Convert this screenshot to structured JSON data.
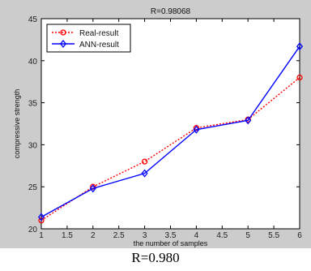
{
  "chart_data": {
    "type": "line",
    "title": "R=0.98068",
    "xlabel": "the number of samples",
    "ylabel": "compressive strength",
    "xlim": [
      1,
      6
    ],
    "ylim": [
      20,
      45
    ],
    "xticks": [
      1,
      1.5,
      2,
      2.5,
      3,
      3.5,
      4,
      4.5,
      5,
      5.5,
      6
    ],
    "xtick_labels": [
      "1",
      "1.5",
      "2",
      "2.5",
      "3",
      "3.5",
      "4",
      "4.5",
      "5",
      "5.5",
      "6"
    ],
    "yticks": [
      20,
      25,
      30,
      35,
      40,
      45
    ],
    "ytick_labels": [
      "20",
      "25",
      "30",
      "35",
      "40",
      "45"
    ],
    "grid": false,
    "legend_position": "top-left",
    "x": [
      1,
      2,
      3,
      4,
      5,
      6
    ],
    "series": [
      {
        "name": "Real-result",
        "values": [
          21.0,
          25.0,
          28.0,
          32.0,
          33.0,
          38.0
        ],
        "color": "#ff0000",
        "line_style": "dotted",
        "marker": "circle"
      },
      {
        "name": "ANN-result",
        "values": [
          21.4,
          24.8,
          26.6,
          31.8,
          32.9,
          41.7
        ],
        "color": "#0000ff",
        "line_style": "solid",
        "marker": "diamond"
      }
    ]
  },
  "caption": "R=0.980",
  "colors": {
    "figure_background": "#cccccc",
    "axes_background": "#ffffff"
  }
}
